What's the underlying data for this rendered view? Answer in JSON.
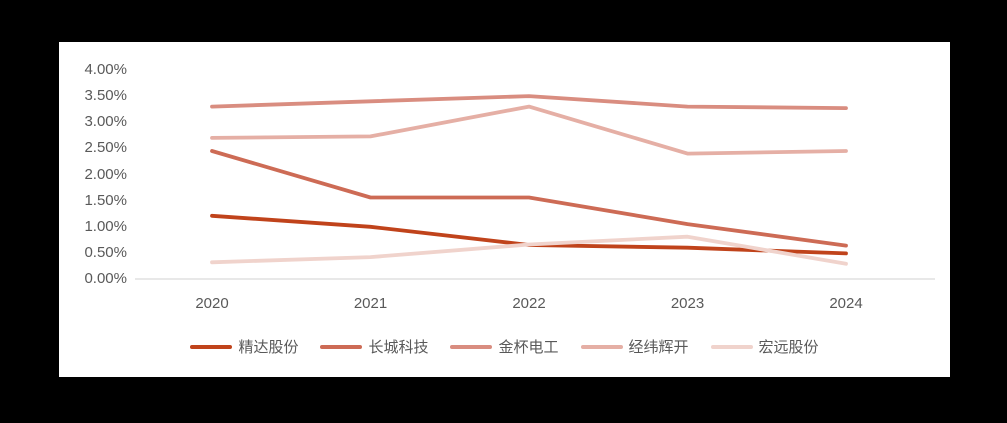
{
  "frame": {
    "background_color": "#000000",
    "panel_color": "#ffffff"
  },
  "chart_data": {
    "type": "line",
    "title": "",
    "xlabel": "",
    "ylabel": "",
    "categories": [
      "2020",
      "2021",
      "2022",
      "2023",
      "2024"
    ],
    "series": [
      {
        "name": "精达股份",
        "color": "#c0431b",
        "values": [
          1.21,
          1.0,
          0.65,
          0.6,
          0.49
        ]
      },
      {
        "name": "长城科技",
        "color": "#cd6b55",
        "values": [
          2.45,
          1.56,
          1.56,
          1.05,
          0.64
        ]
      },
      {
        "name": "金杯电工",
        "color": "#d98d80",
        "values": [
          3.3,
          3.4,
          3.5,
          3.3,
          3.27
        ]
      },
      {
        "name": "经纬辉开",
        "color": "#e5afa5",
        "values": [
          2.7,
          2.73,
          3.3,
          2.4,
          2.45
        ]
      },
      {
        "name": "宏远股份",
        "color": "#f0d3cc",
        "values": [
          0.32,
          0.42,
          0.66,
          0.81,
          0.29
        ]
      }
    ],
    "y_ticks": [
      "4.00%",
      "3.50%",
      "3.00%",
      "2.50%",
      "2.00%",
      "1.50%",
      "1.00%",
      "0.50%",
      "0.00%"
    ],
    "ylim": [
      0,
      4
    ],
    "grid": false,
    "legend_position": "bottom",
    "axis_line_color": "#d9d9d9",
    "text_color": "#595959"
  }
}
